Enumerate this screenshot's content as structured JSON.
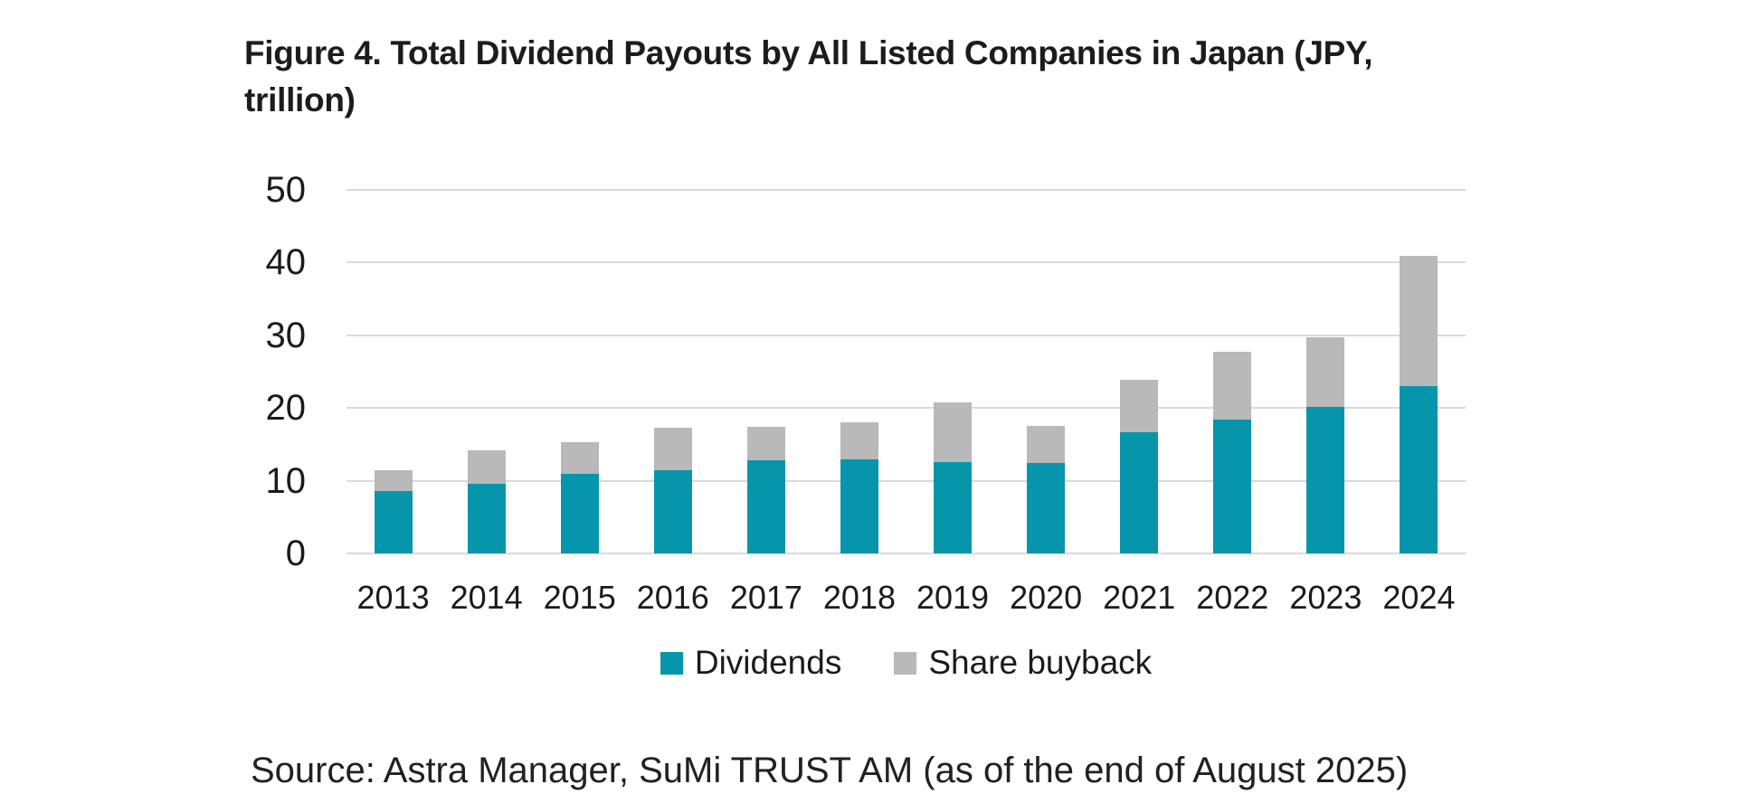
{
  "figure": {
    "title_lines": [
      "Figure 4. Total Dividend Payouts by All Listed Companies in Japan (JPY,",
      "trillion)"
    ],
    "source": "Source: Astra Manager, SuMi TRUST AM (as of the end of August 2025)"
  },
  "colors": {
    "dividends": "#0795ab",
    "share_buyback": "#b9b9b9",
    "gridline": "#dadada",
    "text": "#1b1b1b"
  },
  "legend": [
    {
      "label": "Dividends",
      "color": "#0795ab"
    },
    {
      "label": "Share buyback",
      "color": "#b9b9b9"
    }
  ],
  "chart_data": {
    "type": "bar",
    "stacked": true,
    "title": "Figure 4. Total Dividend Payouts by All Listed Companies in Japan (JPY, trillion)",
    "unit": "JPY trillion",
    "categories": [
      "2013",
      "2014",
      "2015",
      "2016",
      "2017",
      "2018",
      "2019",
      "2020",
      "2021",
      "2022",
      "2023",
      "2024"
    ],
    "series": [
      {
        "name": "Dividends",
        "color": "#0795ab",
        "values": [
          8.6,
          9.6,
          11.0,
          11.5,
          12.8,
          12.9,
          12.6,
          12.4,
          16.7,
          18.4,
          20.2,
          23.0
        ]
      },
      {
        "name": "Share buyback",
        "color": "#b9b9b9",
        "values": [
          2.8,
          4.6,
          4.3,
          5.8,
          4.6,
          5.2,
          8.2,
          5.1,
          7.2,
          9.4,
          9.5,
          17.9
        ]
      }
    ],
    "xlabel": "",
    "ylabel": "",
    "ylim": [
      0,
      50
    ],
    "yticks": [
      0,
      10,
      20,
      30,
      40,
      50
    ],
    "grid": true,
    "legend_position": "bottom",
    "source": "Source: Astra Manager, SuMi TRUST AM (as of the end of August 2025)"
  }
}
